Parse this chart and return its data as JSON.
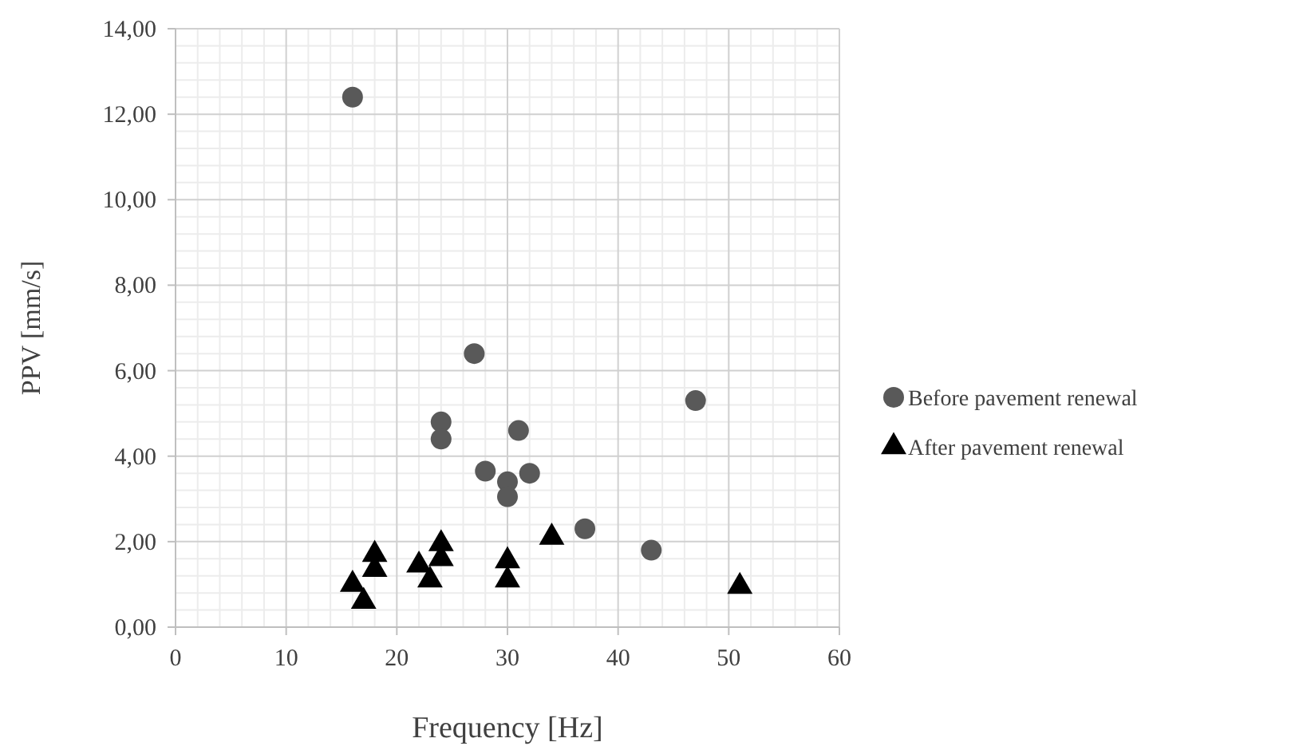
{
  "chart_data": {
    "type": "scatter",
    "xlabel": "Frequency [Hz]",
    "ylabel": "PPV [mm/s]",
    "xlim": [
      0,
      60
    ],
    "xticks": [
      0,
      10,
      20,
      30,
      40,
      50,
      60
    ],
    "ylim": [
      0,
      14
    ],
    "yticks": [
      {
        "value": 0,
        "label": "0,00"
      },
      {
        "value": 2,
        "label": "2,00"
      },
      {
        "value": 4,
        "label": "4,00"
      },
      {
        "value": 6,
        "label": "6,00"
      },
      {
        "value": 8,
        "label": "8,00"
      },
      {
        "value": 10,
        "label": "10,00"
      },
      {
        "value": 12,
        "label": "12,00"
      },
      {
        "value": 14,
        "label": "14,00"
      }
    ],
    "grid": true,
    "legend": "right",
    "series": [
      {
        "name": "Before pavement renewal",
        "color": "#595959",
        "marker": "circle",
        "x": [
          16,
          27,
          24,
          24,
          31,
          28,
          30,
          30,
          32,
          37,
          43,
          47
        ],
        "values": [
          12.4,
          6.4,
          4.8,
          4.4,
          4.6,
          3.65,
          3.4,
          3.05,
          3.6,
          2.3,
          1.8,
          5.3
        ]
      },
      {
        "name": "After pavement renewal",
        "color": "#000000",
        "marker": "triangle",
        "x": [
          16,
          17,
          18,
          18,
          22,
          23,
          24,
          24,
          30,
          30,
          34,
          51
        ],
        "values": [
          1.0,
          0.6,
          1.7,
          1.35,
          1.45,
          1.1,
          1.95,
          1.6,
          1.55,
          1.1,
          2.1,
          0.95
        ]
      }
    ]
  }
}
